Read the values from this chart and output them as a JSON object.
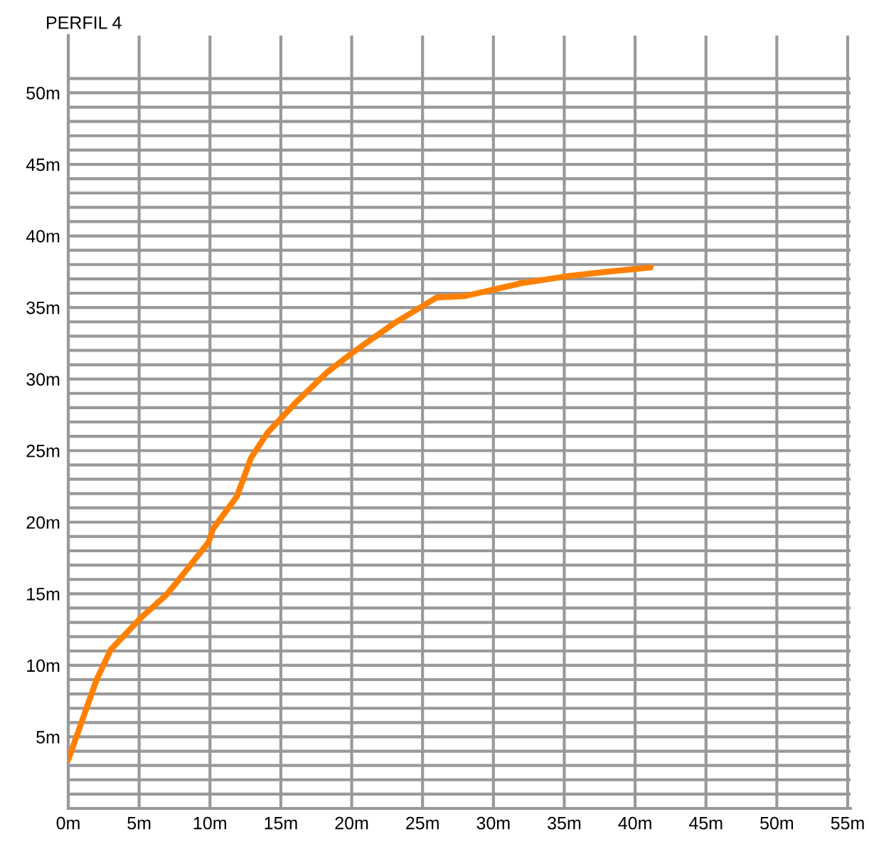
{
  "chart_data": {
    "type": "line",
    "title": "PERFIL 4",
    "x": [
      0,
      2,
      3,
      5.1,
      6.9,
      7.9,
      9.9,
      10.2,
      11.9,
      12.9,
      14.1,
      16,
      18.3,
      20,
      23,
      26,
      28,
      32,
      35.3,
      38,
      41.1
    ],
    "series": [
      {
        "color": "#ff8000",
        "values": [
          3.4,
          9,
          11.1,
          13.3,
          14.9,
          16.1,
          18.6,
          19.5,
          21.8,
          24.5,
          26.3,
          28.3,
          30.5,
          31.8,
          33.9,
          35.7,
          35.8,
          36.7,
          37.2,
          37.5,
          37.8
        ]
      }
    ],
    "xlim": [
      0,
      55.2
    ],
    "ylim": [
      0,
      54
    ],
    "xticks": [
      {
        "value": 0,
        "label": "0m"
      },
      {
        "value": 5,
        "label": "5m"
      },
      {
        "value": 10,
        "label": "10m"
      },
      {
        "value": 15,
        "label": "15m"
      },
      {
        "value": 20,
        "label": "20m"
      },
      {
        "value": 25,
        "label": "25m"
      },
      {
        "value": 30,
        "label": "30m"
      },
      {
        "value": 35,
        "label": "35m"
      },
      {
        "value": 40,
        "label": "40m"
      },
      {
        "value": 45,
        "label": "45m"
      },
      {
        "value": 50,
        "label": "50m"
      },
      {
        "value": 55,
        "label": "55m"
      }
    ],
    "yticks": [
      {
        "value": 1,
        "label": null
      },
      {
        "value": 2,
        "label": null
      },
      {
        "value": 3,
        "label": null
      },
      {
        "value": 4,
        "label": null
      },
      {
        "value": 5,
        "label": "5m"
      },
      {
        "value": 6,
        "label": null
      },
      {
        "value": 7,
        "label": null
      },
      {
        "value": 8,
        "label": null
      },
      {
        "value": 9,
        "label": null
      },
      {
        "value": 10,
        "label": "10m"
      },
      {
        "value": 11,
        "label": null
      },
      {
        "value": 12,
        "label": null
      },
      {
        "value": 13,
        "label": null
      },
      {
        "value": 14,
        "label": null
      },
      {
        "value": 15,
        "label": "15m"
      },
      {
        "value": 16,
        "label": null
      },
      {
        "value": 17,
        "label": null
      },
      {
        "value": 18,
        "label": null
      },
      {
        "value": 19,
        "label": null
      },
      {
        "value": 20,
        "label": "20m"
      },
      {
        "value": 21,
        "label": null
      },
      {
        "value": 22,
        "label": null
      },
      {
        "value": 23,
        "label": null
      },
      {
        "value": 24,
        "label": null
      },
      {
        "value": 25,
        "label": "25m"
      },
      {
        "value": 26,
        "label": null
      },
      {
        "value": 27,
        "label": null
      },
      {
        "value": 28,
        "label": null
      },
      {
        "value": 29,
        "label": null
      },
      {
        "value": 30,
        "label": "30m"
      },
      {
        "value": 31,
        "label": null
      },
      {
        "value": 32,
        "label": null
      },
      {
        "value": 33,
        "label": null
      },
      {
        "value": 34,
        "label": null
      },
      {
        "value": 35,
        "label": "35m"
      },
      {
        "value": 36,
        "label": null
      },
      {
        "value": 37,
        "label": null
      },
      {
        "value": 38,
        "label": null
      },
      {
        "value": 39,
        "label": null
      },
      {
        "value": 40,
        "label": "40m"
      },
      {
        "value": 41,
        "label": null
      },
      {
        "value": 42,
        "label": null
      },
      {
        "value": 43,
        "label": null
      },
      {
        "value": 44,
        "label": null
      },
      {
        "value": 45,
        "label": "45m"
      },
      {
        "value": 46,
        "label": null
      },
      {
        "value": 47,
        "label": null
      },
      {
        "value": 48,
        "label": null
      },
      {
        "value": 49,
        "label": null
      },
      {
        "value": 50,
        "label": "50m"
      },
      {
        "value": 51,
        "label": null
      }
    ],
    "grid": true,
    "legend": false,
    "marker": "none",
    "line_style": "solid"
  }
}
